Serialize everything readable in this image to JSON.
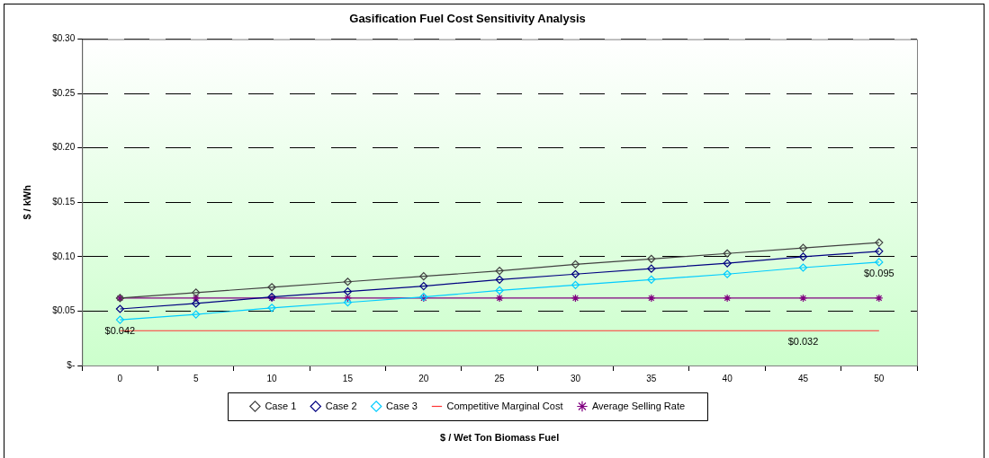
{
  "chart_data": {
    "type": "line",
    "title": "Gasification Fuel Cost Sensitivity Analysis",
    "xlabel": "$ / Wet Ton Biomass Fuel",
    "ylabel": "$ / kWh",
    "categories": [
      "0",
      "5",
      "10",
      "15",
      "20",
      "25",
      "30",
      "35",
      "40",
      "45",
      "50"
    ],
    "series": [
      {
        "name": "Case 1",
        "color": "#404040",
        "marker": "diamond",
        "values": [
          0.062,
          0.067,
          0.072,
          0.077,
          0.082,
          0.087,
          0.093,
          0.098,
          0.103,
          0.108,
          0.113
        ]
      },
      {
        "name": "Case 2",
        "color": "#000080",
        "marker": "diamond",
        "values": [
          0.052,
          0.057,
          0.063,
          0.068,
          0.073,
          0.079,
          0.084,
          0.089,
          0.094,
          0.1,
          0.105
        ]
      },
      {
        "name": "Case 3",
        "color": "#00ccff",
        "marker": "diamond",
        "values": [
          0.042,
          0.047,
          0.053,
          0.058,
          0.063,
          0.069,
          0.074,
          0.079,
          0.084,
          0.09,
          0.095
        ]
      },
      {
        "name": "Competitive Marginal Cost",
        "color": "#ff3333",
        "marker": "none",
        "values": [
          0.032,
          0.032,
          0.032,
          0.032,
          0.032,
          0.032,
          0.032,
          0.032,
          0.032,
          0.032,
          0.032
        ]
      },
      {
        "name": "Average Selling Rate",
        "color": "#800080",
        "marker": "cross",
        "values": [
          0.062,
          0.062,
          0.062,
          0.062,
          0.062,
          0.062,
          0.062,
          0.062,
          0.062,
          0.062,
          0.062
        ]
      }
    ],
    "ylim": [
      0,
      0.3
    ],
    "yticks": [
      {
        "value": 0,
        "label": "$-"
      },
      {
        "value": 0.05,
        "label": "$0.05"
      },
      {
        "value": 0.1,
        "label": "$0.10"
      },
      {
        "value": 0.15,
        "label": "$0.15"
      },
      {
        "value": 0.2,
        "label": "$0.20"
      },
      {
        "value": 0.25,
        "label": "$0.25"
      },
      {
        "value": 0.3,
        "label": "$0.30"
      }
    ],
    "grid": "y",
    "legend": "bottom",
    "line_style": "solid",
    "annotations": [
      {
        "text": "$0.042",
        "x": "0",
        "y": 0.042
      },
      {
        "text": "$0.095",
        "x": "50",
        "y": 0.095
      },
      {
        "text": "$0.032",
        "x": "45",
        "y": 0.032
      }
    ]
  }
}
